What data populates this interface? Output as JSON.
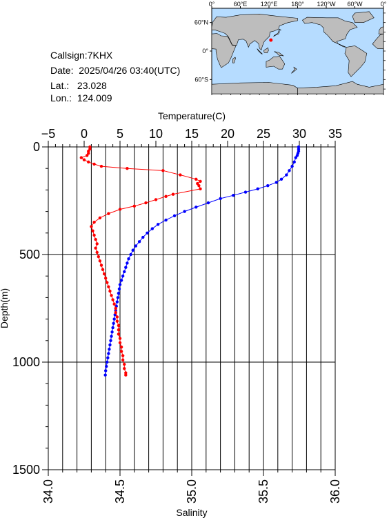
{
  "station": {
    "callsign": "Callsign:7KHX",
    "date": "Date:  2025/04/26 03:40(UTC)",
    "lat": "Lat.:   23.028",
    "lon": "Lon.:  124.009"
  },
  "map": {
    "top_ticks": [
      "0°",
      "60°E",
      "120°E",
      "180°",
      "120°W",
      "60°W",
      "0°"
    ],
    "lat_ticks": [
      "60°N",
      "0°",
      "60°S"
    ],
    "marker": {
      "lon": 124.0,
      "lat": 23.0
    },
    "colors": {
      "ocean": "#b6dcff",
      "land": "#bdbdbd",
      "marker": "#ff0000"
    }
  },
  "chart_data": {
    "type": "line",
    "title": "",
    "temperature_axis": {
      "label": "Temperature(C)",
      "range": [
        -5,
        35
      ],
      "ticks": [
        "−5",
        "0",
        "5",
        "10",
        "15",
        "20",
        "25",
        "30",
        "35"
      ]
    },
    "salinity_axis": {
      "label": "Salinity",
      "range": [
        34.0,
        36.0
      ],
      "ticks": [
        "34.0",
        "34.5",
        "35.0",
        "35.5",
        "36.0"
      ]
    },
    "depth_axis": {
      "label": "Depth(m)",
      "range": [
        0,
        1500
      ],
      "ticks": [
        "0",
        "500",
        "1000",
        "1500"
      ]
    },
    "grid": true,
    "series": [
      {
        "quantity": "temperature",
        "color": "#0000ff",
        "points": [
          [
            29.9,
            0
          ],
          [
            29.9,
            10
          ],
          [
            29.9,
            20
          ],
          [
            29.8,
            30
          ],
          [
            29.7,
            40
          ],
          [
            29.5,
            50
          ],
          [
            29.3,
            70
          ],
          [
            29.0,
            90
          ],
          [
            28.6,
            110
          ],
          [
            28.2,
            130
          ],
          [
            27.5,
            150
          ],
          [
            26.8,
            165
          ],
          [
            25.6,
            180
          ],
          [
            24.2,
            195
          ],
          [
            22.5,
            210
          ],
          [
            20.8,
            225
          ],
          [
            19.0,
            240
          ],
          [
            17.3,
            260
          ],
          [
            15.6,
            280
          ],
          [
            14.0,
            300
          ],
          [
            12.6,
            320
          ],
          [
            11.4,
            340
          ],
          [
            10.3,
            360
          ],
          [
            9.5,
            380
          ],
          [
            8.8,
            400
          ],
          [
            8.2,
            420
          ],
          [
            7.7,
            440
          ],
          [
            7.2,
            460
          ],
          [
            6.8,
            480
          ],
          [
            6.5,
            500
          ],
          [
            6.2,
            520
          ],
          [
            6.0,
            540
          ],
          [
            5.8,
            560
          ],
          [
            5.6,
            580
          ],
          [
            5.4,
            600
          ],
          [
            5.2,
            620
          ],
          [
            5.0,
            640
          ],
          [
            4.9,
            660
          ],
          [
            4.8,
            680
          ],
          [
            4.7,
            700
          ],
          [
            4.6,
            720
          ],
          [
            4.5,
            740
          ],
          [
            4.4,
            760
          ],
          [
            4.3,
            780
          ],
          [
            4.2,
            800
          ],
          [
            4.1,
            820
          ],
          [
            4.0,
            840
          ],
          [
            3.9,
            860
          ],
          [
            3.8,
            880
          ],
          [
            3.7,
            900
          ],
          [
            3.6,
            920
          ],
          [
            3.5,
            940
          ],
          [
            3.4,
            960
          ],
          [
            3.3,
            980
          ],
          [
            3.2,
            1000
          ],
          [
            3.1,
            1020
          ],
          [
            3.0,
            1040
          ],
          [
            2.95,
            1060
          ]
        ]
      },
      {
        "quantity": "salinity",
        "color": "#ff0000",
        "points": [
          [
            34.29,
            0
          ],
          [
            34.29,
            10
          ],
          [
            34.28,
            20
          ],
          [
            34.28,
            30
          ],
          [
            34.27,
            40
          ],
          [
            34.23,
            50
          ],
          [
            34.25,
            60
          ],
          [
            34.28,
            70
          ],
          [
            34.32,
            80
          ],
          [
            34.37,
            90
          ],
          [
            34.55,
            100
          ],
          [
            34.8,
            110
          ],
          [
            34.92,
            130
          ],
          [
            35.03,
            150
          ],
          [
            35.06,
            160
          ],
          [
            35.04,
            170
          ],
          [
            35.05,
            180
          ],
          [
            35.06,
            195
          ],
          [
            34.87,
            220
          ],
          [
            34.82,
            230
          ],
          [
            34.75,
            245
          ],
          [
            34.68,
            260
          ],
          [
            34.6,
            275
          ],
          [
            34.5,
            290
          ],
          [
            34.42,
            310
          ],
          [
            34.36,
            330
          ],
          [
            34.32,
            350
          ],
          [
            34.3,
            370
          ],
          [
            34.31,
            390
          ],
          [
            34.32,
            410
          ],
          [
            34.33,
            430
          ],
          [
            34.34,
            450
          ],
          [
            34.33,
            470
          ],
          [
            34.34,
            490
          ],
          [
            34.35,
            510
          ],
          [
            34.36,
            530
          ],
          [
            34.37,
            550
          ],
          [
            34.38,
            570
          ],
          [
            34.39,
            590
          ],
          [
            34.4,
            610
          ],
          [
            34.41,
            630
          ],
          [
            34.42,
            650
          ],
          [
            34.43,
            670
          ],
          [
            34.44,
            690
          ],
          [
            34.45,
            710
          ],
          [
            34.46,
            730
          ],
          [
            34.47,
            750
          ],
          [
            34.47,
            770
          ],
          [
            34.48,
            790
          ],
          [
            34.48,
            810
          ],
          [
            34.49,
            830
          ],
          [
            34.49,
            850
          ],
          [
            34.49,
            870
          ],
          [
            34.5,
            890
          ],
          [
            34.5,
            910
          ],
          [
            34.51,
            930
          ],
          [
            34.51,
            950
          ],
          [
            34.52,
            970
          ],
          [
            34.52,
            990
          ],
          [
            34.53,
            1010
          ],
          [
            34.53,
            1030
          ],
          [
            34.54,
            1050
          ],
          [
            34.54,
            1060
          ]
        ]
      }
    ]
  }
}
